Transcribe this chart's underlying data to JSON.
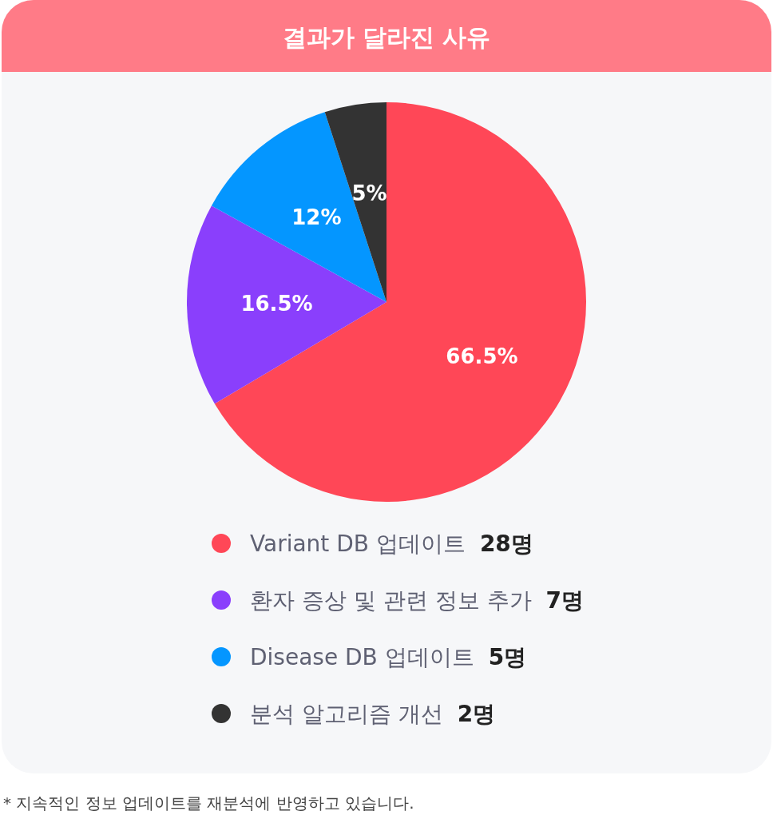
{
  "chart_data": {
    "type": "pie",
    "title": "결과가 달라진 사유",
    "categories": [
      "Variant DB 업데이트",
      "환자 증상 및 관련 정보 추가",
      "Disease DB 업데이트",
      "분석 알고리즘 개선"
    ],
    "values": [
      66.5,
      16.5,
      12,
      5
    ],
    "value_labels": [
      "66.5%",
      "16.5%",
      "12%",
      "5%"
    ],
    "colors": [
      "#ff4757",
      "#8a3ffc",
      "#0496ff",
      "#333333"
    ],
    "legend": "bottom",
    "annotations": [
      "28명",
      "7명",
      "5명",
      "2명",
      "* 지속적인 정보 업데이트를 재분석에 반영하고 있습니다."
    ]
  }
}
